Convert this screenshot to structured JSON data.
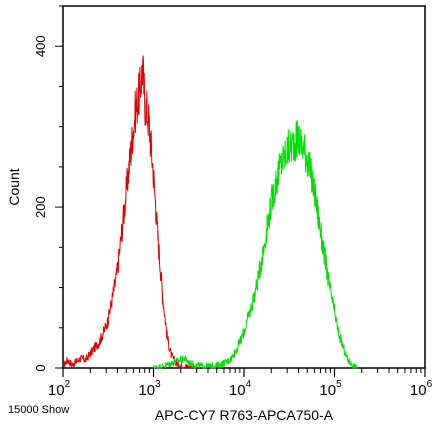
{
  "chart_data": {
    "type": "line",
    "title": "",
    "xlabel": "APC-CY7 R763-APCA750-A",
    "ylabel": "Count",
    "xscale": "log",
    "xlim": [
      100,
      1000000
    ],
    "ylim": [
      0,
      450
    ],
    "x_ticks": [
      {
        "base": "10",
        "exp": "2",
        "value": 100
      },
      {
        "base": "10",
        "exp": "3",
        "value": 1000
      },
      {
        "base": "10",
        "exp": "4",
        "value": 10000
      },
      {
        "base": "10",
        "exp": "5",
        "value": 100000
      },
      {
        "base": "10",
        "exp": "6",
        "value": 1000000
      }
    ],
    "y_ticks": [
      0,
      200,
      400
    ],
    "grid": false,
    "legend": "none",
    "series": [
      {
        "color": "#dd0000",
        "points": [
          [
            100,
            2
          ],
          [
            112,
            10
          ],
          [
            126,
            4
          ],
          [
            141,
            8
          ],
          [
            158,
            12
          ],
          [
            178,
            10
          ],
          [
            200,
            18
          ],
          [
            224,
            25
          ],
          [
            251,
            32
          ],
          [
            282,
            45
          ],
          [
            316,
            60
          ],
          [
            355,
            90
          ],
          [
            398,
            120
          ],
          [
            447,
            170
          ],
          [
            501,
            220
          ],
          [
            562,
            270
          ],
          [
            631,
            320
          ],
          [
            708,
            345
          ],
          [
            760,
            375
          ],
          [
            800,
            330
          ],
          [
            850,
            320
          ],
          [
            900,
            300
          ],
          [
            950,
            270
          ],
          [
            1000,
            240
          ],
          [
            1060,
            200
          ],
          [
            1122,
            160
          ],
          [
            1200,
            120
          ],
          [
            1259,
            90
          ],
          [
            1350,
            60
          ],
          [
            1413,
            40
          ],
          [
            1500,
            25
          ],
          [
            1585,
            15
          ],
          [
            1778,
            6
          ],
          [
            2000,
            3
          ],
          [
            2500,
            1
          ],
          [
            3000,
            0
          ]
        ]
      },
      {
        "color": "#00dd00",
        "points": [
          [
            1000,
            0
          ],
          [
            1200,
            1
          ],
          [
            1500,
            5
          ],
          [
            1800,
            8
          ],
          [
            2200,
            12
          ],
          [
            2500,
            6
          ],
          [
            3000,
            3
          ],
          [
            4000,
            2
          ],
          [
            5000,
            3
          ],
          [
            6000,
            6
          ],
          [
            7000,
            10
          ],
          [
            8000,
            20
          ],
          [
            9000,
            32
          ],
          [
            10000,
            45
          ],
          [
            12000,
            75
          ],
          [
            14000,
            105
          ],
          [
            16000,
            140
          ],
          [
            18000,
            175
          ],
          [
            20000,
            205
          ],
          [
            23000,
            235
          ],
          [
            26000,
            255
          ],
          [
            30000,
            270
          ],
          [
            35000,
            280
          ],
          [
            40000,
            285
          ],
          [
            45000,
            275
          ],
          [
            50000,
            262
          ],
          [
            55000,
            240
          ],
          [
            60000,
            220
          ],
          [
            65000,
            195
          ],
          [
            70000,
            170
          ],
          [
            80000,
            130
          ],
          [
            90000,
            95
          ],
          [
            100000,
            70
          ],
          [
            110000,
            45
          ],
          [
            125000,
            25
          ],
          [
            140000,
            10
          ],
          [
            160000,
            3
          ],
          [
            180000,
            0
          ]
        ]
      }
    ]
  },
  "footer_note": "15000 Show"
}
